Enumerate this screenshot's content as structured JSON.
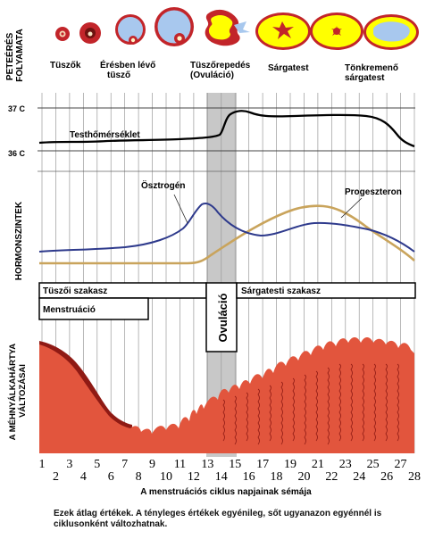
{
  "side_labels": {
    "ovulation_process": [
      "PETEÉRÉS",
      "FOLYAMATA"
    ],
    "hormone_levels": "HORMONSZINTEK",
    "endometrium": [
      "A MÉHNYÁLKAHÁRTYA",
      "VÁLTOZÁSAI"
    ]
  },
  "stages": [
    {
      "name": "Tüszők"
    },
    {
      "name": "Érésben lévő\ntüsző"
    },
    {
      "name": "Tüszőrepedés\n(Ovuláció)"
    },
    {
      "name": "Sárgatest"
    },
    {
      "name": "Tönkremenő\nsárgatest"
    }
  ],
  "temperature": {
    "label": "Testhőmérséklet",
    "high_label": "37 C",
    "low_label": "36 C"
  },
  "hormones": {
    "estrogen": {
      "label": "Ösztrogén",
      "color": "#2e3a8c"
    },
    "progesterone": {
      "label": "Progeszteron",
      "color": "#c9a45c"
    }
  },
  "phases": {
    "follicular": "Tüszői szakasz",
    "menstruation": "Menstruáció",
    "ovulation": "Ovuláció",
    "luteal": "Sárgatesti szakasz"
  },
  "axis": {
    "days": [
      "1",
      "2",
      "3",
      "4",
      "5",
      "6",
      "7",
      "8",
      "9",
      "10",
      "11",
      "12",
      "13",
      "14",
      "15",
      "16",
      "17",
      "18",
      "19",
      "20",
      "21",
      "22",
      "23",
      "24",
      "25",
      "26",
      "27",
      "28"
    ],
    "title": "A menstruációs ciklus napjainak sémája"
  },
  "footnote": "Ezek átlag értékek.  A tényleges értékek egyénileg, sőt ugyanazon egyénnél is ciklusonként változhatnak.",
  "colors": {
    "endometrium": "#e2553d",
    "endometrium_dark": "#8f1a14",
    "follicle_ring": "#c2252a",
    "fluid": "#a8c8ee",
    "yellow": "#ffff00",
    "ovulation_band": "#c8c8c8"
  }
}
